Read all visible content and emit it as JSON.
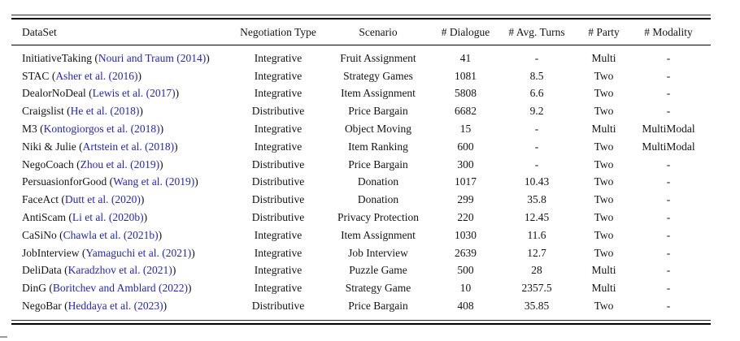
{
  "table": {
    "columns": [
      "DataSet",
      "Negotiation Type",
      "Scenario",
      "# Dialogue",
      "# Avg. Turns",
      "# Party",
      "# Modality"
    ],
    "format": {
      "open": " (",
      "close": ")"
    },
    "colors": {
      "citation_link": "#2424c0",
      "text": "#141414",
      "rule": "#000000",
      "background": "#ffffff"
    },
    "rows": [
      {
        "name": "InitiativeTaking",
        "citation": "Nouri and Traum (2014)",
        "negotiation_type": "Integrative",
        "scenario": "Fruit Assignment",
        "dialogues": "41",
        "avg_turns": "-",
        "party": "Multi",
        "modality": "-"
      },
      {
        "name": "STAC",
        "citation": "Asher et al. (2016)",
        "negotiation_type": "Integrative",
        "scenario": "Strategy Games",
        "dialogues": "1081",
        "avg_turns": "8.5",
        "party": "Two",
        "modality": "-"
      },
      {
        "name": "DealorNoDeal",
        "citation": "Lewis et al. (2017)",
        "negotiation_type": "Integrative",
        "scenario": "Item Assignment",
        "dialogues": "5808",
        "avg_turns": "6.6",
        "party": "Two",
        "modality": "-"
      },
      {
        "name": "Craigslist",
        "citation": "He et al. (2018)",
        "negotiation_type": "Distributive",
        "scenario": "Price Bargain",
        "dialogues": "6682",
        "avg_turns": "9.2",
        "party": "Two",
        "modality": "-"
      },
      {
        "name": "M3",
        "citation": "Kontogiorgos et al. (2018)",
        "negotiation_type": "Integrative",
        "scenario": "Object Moving",
        "dialogues": "15",
        "avg_turns": "-",
        "party": "Multi",
        "modality": "MultiModal"
      },
      {
        "name": "Niki & Julie",
        "citation": "Artstein et al. (2018)",
        "negotiation_type": "Integrative",
        "scenario": "Item Ranking",
        "dialogues": "600",
        "avg_turns": "-",
        "party": "Two",
        "modality": "MultiModal"
      },
      {
        "name": "NegoCoach",
        "citation": "Zhou et al. (2019)",
        "negotiation_type": "Distributive",
        "scenario": "Price Bargain",
        "dialogues": "300",
        "avg_turns": "-",
        "party": "Two",
        "modality": "-"
      },
      {
        "name": "PersuasionforGood",
        "citation": "Wang et al. (2019)",
        "negotiation_type": "Distributive",
        "scenario": "Donation",
        "dialogues": "1017",
        "avg_turns": "10.43",
        "party": "Two",
        "modality": "-"
      },
      {
        "name": "FaceAct",
        "citation": "Dutt et al. (2020)",
        "negotiation_type": "Distributive",
        "scenario": "Donation",
        "dialogues": "299",
        "avg_turns": "35.8",
        "party": "Two",
        "modality": "-"
      },
      {
        "name": "AntiScam",
        "citation": "Li et al. (2020b)",
        "negotiation_type": "Distributive",
        "scenario": "Privacy Protection",
        "dialogues": "220",
        "avg_turns": "12.45",
        "party": "Two",
        "modality": "-"
      },
      {
        "name": "CaSiNo",
        "citation": "Chawla et al. (2021b)",
        "negotiation_type": "Integrative",
        "scenario": "Item Assignment",
        "dialogues": "1030",
        "avg_turns": "11.6",
        "party": "Two",
        "modality": "-"
      },
      {
        "name": "JobInterview",
        "citation": "Yamaguchi et al. (2021)",
        "negotiation_type": "Integrative",
        "scenario": "Job Interview",
        "dialogues": "2639",
        "avg_turns": "12.7",
        "party": "Two",
        "modality": "-"
      },
      {
        "name": "DeliData",
        "citation": "Karadzhov et al. (2021)",
        "negotiation_type": "Integrative",
        "scenario": "Puzzle Game",
        "dialogues": "500",
        "avg_turns": "28",
        "party": "Multi",
        "modality": "-"
      },
      {
        "name": "DinG",
        "citation": "Boritchev and Amblard (2022)",
        "negotiation_type": "Integrative",
        "scenario": "Strategy Game",
        "dialogues": "10",
        "avg_turns": "2357.5",
        "party": "Multi",
        "modality": "-"
      },
      {
        "name": "NegoBar",
        "citation": "Heddaya et al. (2023)",
        "negotiation_type": "Distributive",
        "scenario": "Price Bargain",
        "dialogues": "408",
        "avg_turns": "35.85",
        "party": "Two",
        "modality": "-"
      }
    ]
  }
}
